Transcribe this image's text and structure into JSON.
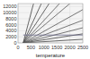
{
  "chart_data": {
    "type": "line",
    "xlabel": "temperature",
    "xlim": [
      0,
      2500
    ],
    "ylim": [
      0,
      13000
    ],
    "xticks": [
      0,
      500,
      1000,
      1500,
      2000,
      2500
    ],
    "yticks": [
      0,
      2000,
      4000,
      6000,
      8000,
      10000,
      12000
    ],
    "grid": true,
    "series": [
      {
        "color": "#444444",
        "x": [
          200,
          600
        ],
        "values": [
          0,
          13000
        ]
      },
      {
        "color": "#444444",
        "x": [
          200,
          900
        ],
        "values": [
          0,
          13000
        ]
      },
      {
        "color": "#444444",
        "x": [
          200,
          1200
        ],
        "values": [
          0,
          13000
        ]
      },
      {
        "color": "#555555",
        "x": [
          200,
          1600
        ],
        "values": [
          0,
          13000
        ]
      },
      {
        "color": "#555555",
        "x": [
          200,
          2000
        ],
        "values": [
          0,
          13000
        ]
      },
      {
        "color": "#555555",
        "x": [
          200,
          2500
        ],
        "values": [
          0,
          11000
        ]
      },
      {
        "color": "#555555",
        "x": [
          200,
          2500
        ],
        "values": [
          0,
          7500
        ]
      },
      {
        "color": "#555555",
        "x": [
          200,
          2500
        ],
        "values": [
          0,
          5000
        ]
      },
      {
        "color": "#444444",
        "x": [
          200,
          2500
        ],
        "values": [
          0,
          3000
        ]
      },
      {
        "color": "#444444",
        "x": [
          200,
          2500
        ],
        "values": [
          0,
          1200
        ]
      },
      {
        "color": "#666688",
        "x": [
          200,
          2500
        ],
        "values": [
          2600,
          2600
        ]
      }
    ]
  }
}
